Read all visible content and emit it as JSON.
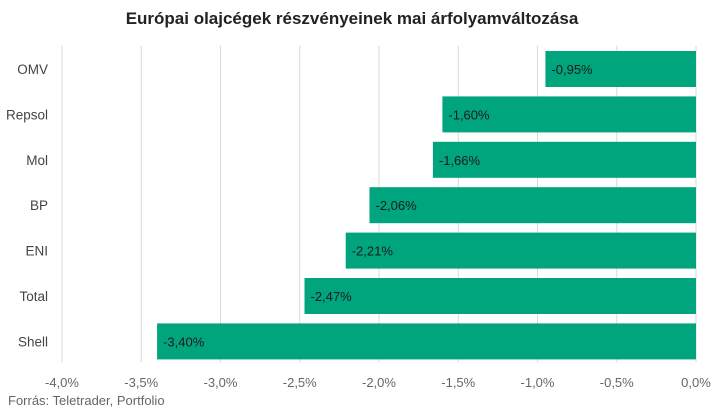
{
  "chart_data": {
    "type": "bar",
    "orientation": "horizontal",
    "title": "Európai olajcégek részvényeinek mai árfolyamváltozása",
    "categories": [
      "OMV",
      "Repsol",
      "Mol",
      "BP",
      "ENI",
      "Total",
      "Shell"
    ],
    "values": [
      -0.95,
      -1.6,
      -1.66,
      -2.06,
      -2.21,
      -2.47,
      -3.4
    ],
    "data_labels": [
      "-0,95%",
      "-1,60%",
      "-1,66%",
      "-2,06%",
      "-2,21%",
      "-2,47%",
      "-3,40%"
    ],
    "xlim": [
      -4.0,
      0.0
    ],
    "x_ticks": [
      -4.0,
      -3.5,
      -3.0,
      -2.5,
      -2.0,
      -1.5,
      -1.0,
      -0.5,
      0.0
    ],
    "x_tick_labels": [
      "-4,0%",
      "-3,5%",
      "-3,0%",
      "-2,5%",
      "-2,0%",
      "-1,5%",
      "-1,0%",
      "-0,5%",
      "0,0%"
    ],
    "grid": true,
    "bar_color": "#00a57e",
    "source": "Forrás: Teletrader, Portfolio"
  }
}
